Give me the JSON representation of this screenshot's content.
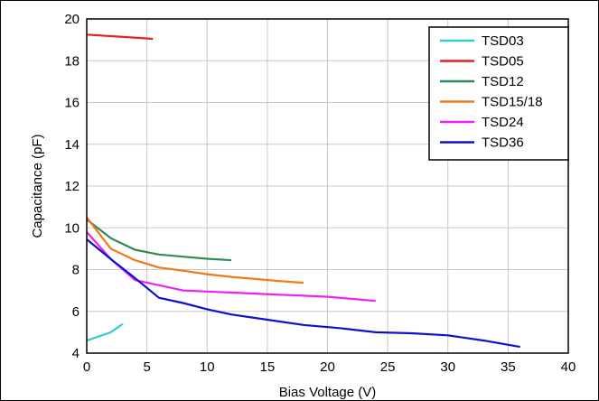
{
  "chart_data": {
    "type": "line",
    "title": "",
    "xlabel": "Bias Voltage (V)",
    "ylabel": "Capacitance (pF)",
    "xlim": [
      0,
      40
    ],
    "ylim": [
      4,
      20
    ],
    "xticks": [
      0,
      5,
      10,
      15,
      20,
      25,
      30,
      35,
      40
    ],
    "yticks": [
      4,
      6,
      8,
      10,
      12,
      14,
      16,
      18,
      20
    ],
    "grid": true,
    "legend_position": "top-right",
    "series": [
      {
        "name": "TSD03",
        "color": "#33CCCC",
        "x": [
          0,
          1,
          2,
          3
        ],
        "y": [
          4.6,
          4.8,
          5.0,
          5.4
        ]
      },
      {
        "name": "TSD05",
        "color": "#E8201C",
        "x": [
          0,
          5.5
        ],
        "y": [
          19.25,
          19.05
        ]
      },
      {
        "name": "TSD12",
        "color": "#2E8B57",
        "x": [
          0,
          2,
          4,
          6,
          8,
          10,
          12
        ],
        "y": [
          10.4,
          9.5,
          8.95,
          8.72,
          8.62,
          8.52,
          8.45
        ]
      },
      {
        "name": "TSD15/18",
        "color": "#F07818",
        "x": [
          0,
          2,
          4,
          6,
          8,
          10,
          12,
          14,
          16,
          18
        ],
        "y": [
          10.5,
          9.0,
          8.45,
          8.1,
          7.95,
          7.78,
          7.65,
          7.55,
          7.45,
          7.37
        ]
      },
      {
        "name": "TSD24",
        "color": "#EE22EE",
        "x": [
          0,
          2,
          4,
          6,
          8,
          10,
          12,
          14,
          16,
          18,
          20,
          22,
          24
        ],
        "y": [
          9.8,
          8.5,
          7.5,
          7.25,
          7.0,
          6.95,
          6.9,
          6.85,
          6.8,
          6.75,
          6.7,
          6.6,
          6.5
        ]
      },
      {
        "name": "TSD36",
        "color": "#1010CC",
        "x": [
          0,
          2,
          4,
          6,
          8,
          10,
          12,
          15,
          18,
          21,
          24,
          27,
          30,
          33,
          36
        ],
        "y": [
          9.45,
          8.5,
          7.6,
          6.65,
          6.4,
          6.1,
          5.85,
          5.6,
          5.35,
          5.2,
          5.0,
          4.95,
          4.85,
          4.6,
          4.3
        ]
      }
    ]
  }
}
